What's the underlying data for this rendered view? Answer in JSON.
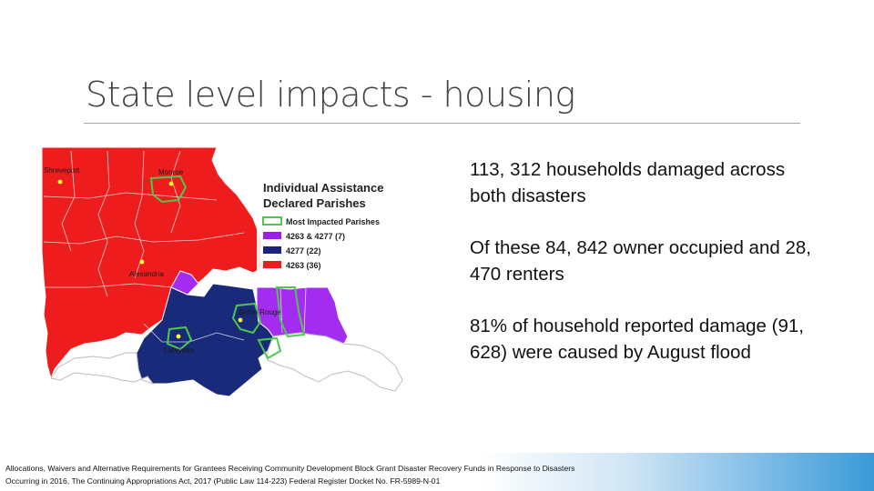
{
  "slide": {
    "title": "State level impacts - housing"
  },
  "map": {
    "cities": [
      "Shreveport",
      "Monroe",
      "Alexandria",
      "Baton Rouge",
      "Lafayette"
    ],
    "legend": {
      "title_line1": "Individual Assistance",
      "title_line2": "Declared Parishes",
      "items": [
        {
          "label": "Most Impacted Parishes",
          "color": "#ffffff",
          "border": "#4cc94c"
        },
        {
          "label": "4263 & 4277 (7)",
          "color": "#9b1fe8",
          "border": "#9b1fe8"
        },
        {
          "label": "4277 (22)",
          "color": "#1a237e",
          "border": "#1a237e"
        },
        {
          "label": "4263 (36)",
          "color": "#ee1c1c",
          "border": "#ee1c1c"
        }
      ]
    },
    "colors": {
      "red": "#ee1c1c",
      "navy": "#1a2a7a",
      "purple": "#a32cf0",
      "green": "#4cc94c",
      "white": "#ffffff"
    }
  },
  "bullets": [
    "113, 312 households damaged across both disasters",
    "Of these 84, 842 owner occupied and 28, 470 renters",
    "81% of household reported damage (91, 628) were caused by August flood"
  ],
  "footer": {
    "line1": "Allocations, Waivers and Alternative Requirements for Grantees Receiving Community Development Block Grant Disaster Recovery Funds in Response to Disasters",
    "line2": "Occurring in 2016, The Continuing Appropriations Act, 2017 (Public Law 114-223) Federal Register Docket No. FR-5989-N-01"
  }
}
